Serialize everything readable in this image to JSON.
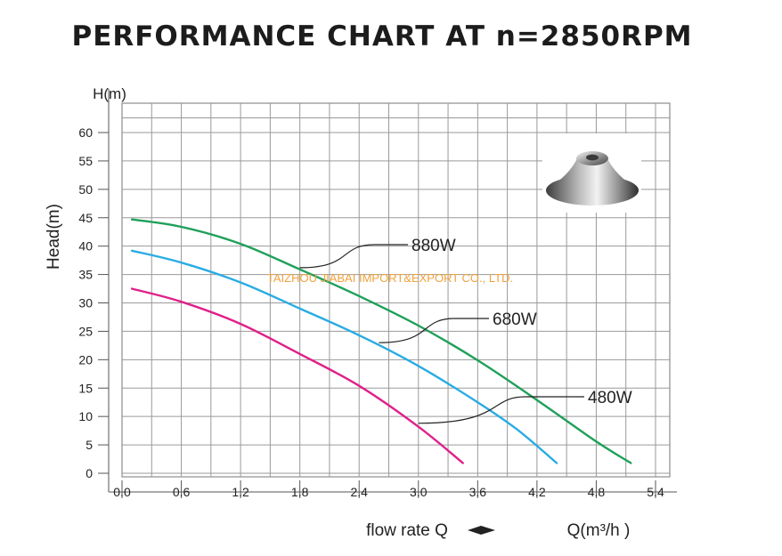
{
  "chart_data": {
    "type": "line",
    "title": "PERFORMANCE CHART AT n=2850RPM",
    "xlabel": "flow rate Q",
    "xunit_label": "Q(m³/h )",
    "ylabel": "Head(m)",
    "yunit_label": "H(m)",
    "xlim": [
      0,
      5.4
    ],
    "ylim": [
      0,
      60
    ],
    "x_ticks": [
      "0.0",
      "0.6",
      "1.2",
      "1.8",
      "2.4",
      "3.0",
      "3.6",
      "4.2",
      "4.8",
      "5.4"
    ],
    "y_ticks": [
      "0",
      "5",
      "10",
      "15",
      "20",
      "25",
      "30",
      "35",
      "40",
      "45",
      "50",
      "55",
      "60"
    ],
    "grid": true,
    "watermark": "TAIZHOU JIABAI IMPORT&EXPORT CO., LTD.",
    "series": [
      {
        "name": "880W",
        "color": "#1fa05a",
        "points": [
          [
            0.1,
            44.7
          ],
          [
            0.6,
            43.4
          ],
          [
            1.2,
            40.4
          ],
          [
            1.8,
            35.9
          ],
          [
            2.4,
            31.2
          ],
          [
            3.0,
            26.0
          ],
          [
            3.6,
            19.9
          ],
          [
            4.2,
            12.9
          ],
          [
            4.8,
            5.6
          ],
          [
            5.15,
            1.8
          ]
        ],
        "label_anchor": [
          1.8,
          36.2
        ]
      },
      {
        "name": "680W",
        "color": "#29ace3",
        "points": [
          [
            0.1,
            39.2
          ],
          [
            0.6,
            37.1
          ],
          [
            1.2,
            33.6
          ],
          [
            1.8,
            29.0
          ],
          [
            2.4,
            24.3
          ],
          [
            3.0,
            18.9
          ],
          [
            3.6,
            12.5
          ],
          [
            4.0,
            7.7
          ],
          [
            4.4,
            1.8
          ]
        ],
        "label_anchor": [
          2.6,
          23.0
        ]
      },
      {
        "name": "480W",
        "color": "#e0208a",
        "points": [
          [
            0.1,
            32.5
          ],
          [
            0.6,
            30.2
          ],
          [
            1.2,
            26.3
          ],
          [
            1.8,
            21.0
          ],
          [
            2.4,
            15.4
          ],
          [
            3.0,
            8.2
          ],
          [
            3.45,
            1.8
          ]
        ],
        "label_anchor": [
          3.0,
          8.8
        ]
      }
    ]
  }
}
